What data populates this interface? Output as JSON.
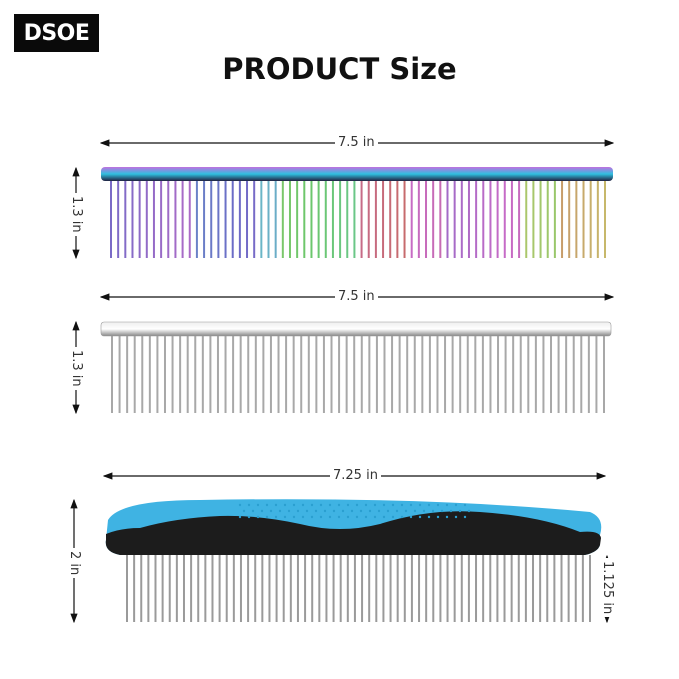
{
  "brand": "DSOE",
  "title": "PRODUCT Size",
  "products": [
    {
      "name": "Rainbow comb",
      "finish": "iridescent rainbow",
      "width_label": "7.5 in",
      "height_label": "1.3 in"
    },
    {
      "name": "Silver comb",
      "finish": "stainless steel",
      "width_label": "7.5 in",
      "height_label": "1.3 in"
    },
    {
      "name": "Handled comb",
      "finish": "blue and black handle, stainless teeth",
      "width_label": "7.25 in",
      "height_label": "2 in",
      "teeth_label": "1.125 in"
    }
  ],
  "colors": {
    "handle_blue": "#3fb3e3",
    "handle_black": "#1c1c1c",
    "steel": "#a8a8a8"
  }
}
